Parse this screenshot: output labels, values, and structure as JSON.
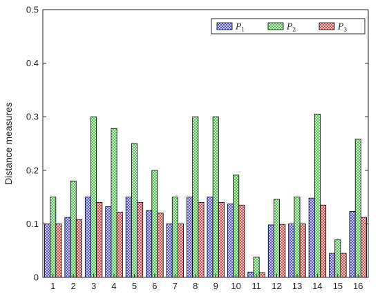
{
  "chart_data": {
    "type": "bar",
    "categories": [
      "1",
      "2",
      "3",
      "4",
      "5",
      "6",
      "7",
      "8",
      "9",
      "10",
      "11",
      "12",
      "13",
      "14",
      "15",
      "16"
    ],
    "series": [
      {
        "name": "P1",
        "legend_base": "P",
        "legend_sub": "1",
        "color": "#3b3bd0",
        "values": [
          0.1,
          0.112,
          0.15,
          0.132,
          0.15,
          0.125,
          0.1,
          0.15,
          0.15,
          0.137,
          0.01,
          0.098,
          0.1,
          0.148,
          0.045,
          0.123
        ]
      },
      {
        "name": "P2",
        "legend_base": "P",
        "legend_sub": "2",
        "color": "#3cb43c",
        "values": [
          0.15,
          0.18,
          0.3,
          0.278,
          0.25,
          0.2,
          0.15,
          0.3,
          0.3,
          0.191,
          0.038,
          0.146,
          0.15,
          0.305,
          0.07,
          0.258
        ]
      },
      {
        "name": "P3",
        "legend_base": "P",
        "legend_sub": "3",
        "color": "#c83232",
        "values": [
          0.1,
          0.108,
          0.14,
          0.122,
          0.14,
          0.12,
          0.1,
          0.14,
          0.14,
          0.135,
          0.009,
          0.099,
          0.1,
          0.135,
          0.045,
          0.112
        ]
      }
    ],
    "ylabel": "Distance measures",
    "xlabel": "",
    "ylim": [
      0,
      0.5
    ],
    "yticks": [
      "0",
      "0.1",
      "0.2",
      "0.3",
      "0.4",
      "0.5"
    ],
    "ytick_values": [
      0,
      0.1,
      0.2,
      0.3,
      0.4,
      0.5
    ],
    "legend_position": "top-right",
    "grid": false
  }
}
